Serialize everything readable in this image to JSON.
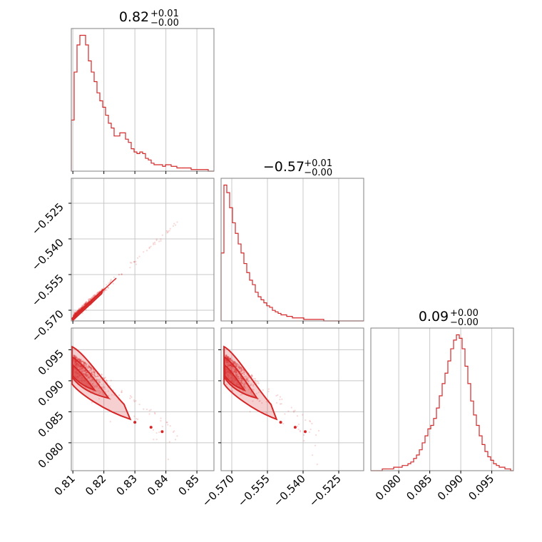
{
  "chart_data": {
    "type": "corner",
    "color": "#d62728",
    "grid": true,
    "parameters": [
      {
        "range": [
          0.8095,
          0.8555
        ],
        "ticks": [
          0.81,
          0.82,
          0.83,
          0.84,
          0.85
        ],
        "tick_labels": [
          "0.81",
          "0.82",
          "0.83",
          "0.84",
          "0.85"
        ],
        "title": {
          "value": "0.82",
          "plus": "+0.01",
          "minus": "−0.00"
        },
        "histogram": {
          "start": 0.8095,
          "bin_width": 0.00092,
          "counts": [
            32,
            62,
            79,
            85,
            85,
            79,
            69,
            62,
            56,
            49,
            44,
            40,
            35,
            30,
            27,
            22,
            22,
            24,
            24,
            20,
            18,
            14,
            12,
            11,
            12,
            11,
            8,
            7,
            5,
            4,
            4,
            4,
            3,
            4,
            4,
            3,
            3,
            2,
            2,
            2,
            2,
            2,
            1,
            1,
            1,
            1,
            1,
            1,
            0,
            0
          ]
        }
      },
      {
        "range": [
          -0.5745,
          -0.5145
        ],
        "ticks": [
          -0.57,
          -0.555,
          -0.54,
          -0.525
        ],
        "tick_labels": [
          "−0.570",
          "−0.555",
          "−0.540",
          "−0.525"
        ],
        "title": {
          "value": "−0.57",
          "plus": "+0.01",
          "minus": "−0.00"
        },
        "histogram": {
          "start": -0.5745,
          "bin_width": 0.0012,
          "counts": [
            45,
            90,
            85,
            75,
            65,
            58,
            51,
            45,
            38,
            32,
            27,
            24,
            19,
            16,
            14,
            12,
            10,
            9,
            7,
            6,
            5,
            4,
            4,
            3,
            3,
            2,
            2,
            2,
            2,
            1,
            1,
            1,
            1,
            1,
            1,
            1,
            0,
            0,
            0,
            0,
            0,
            0,
            0,
            0,
            0,
            0,
            0,
            0,
            0,
            0
          ]
        }
      },
      {
        "range": [
          0.0755,
          0.0985
        ],
        "ticks": [
          0.08,
          0.085,
          0.09,
          0.095
        ],
        "tick_labels": [
          "0.080",
          "0.085",
          "0.090",
          "0.095"
        ],
        "title": {
          "value": "0.09",
          "plus": "+0.00",
          "minus": "−0.00"
        },
        "histogram": {
          "start": 0.0755,
          "bin_width": 0.00046,
          "counts": [
            0,
            0,
            0,
            0,
            1,
            1,
            1,
            1,
            2,
            2,
            2,
            3,
            3,
            4,
            5,
            7,
            9,
            12,
            16,
            20,
            24,
            26,
            30,
            36,
            43,
            50,
            56,
            63,
            70,
            75,
            78,
            76,
            70,
            60,
            50,
            40,
            32,
            26,
            20,
            15,
            11,
            8,
            6,
            4,
            3,
            2,
            2,
            1,
            1,
            0
          ]
        }
      }
    ]
  }
}
